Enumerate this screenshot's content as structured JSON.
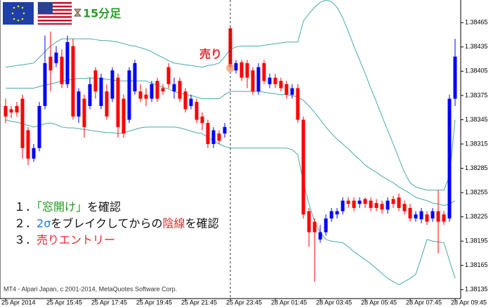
{
  "chart_data": {
    "type": "candlestick",
    "title": "15分足",
    "categories": [
      "25 Apr 2014",
      null,
      null,
      null,
      null,
      null,
      null,
      null,
      "25 Apr 15:45",
      null,
      null,
      null,
      null,
      null,
      null,
      null,
      "25 Apr 17:45",
      null,
      null,
      null,
      null,
      null,
      null,
      null,
      "25 Apr 19:45",
      null,
      null,
      null,
      null,
      null,
      null,
      null,
      "25 Apr 21:45",
      null,
      null,
      null,
      null,
      null,
      null,
      null,
      "25 Apr 23:45",
      null,
      null,
      null,
      null,
      null,
      null,
      null,
      "28 Apr 01:45",
      null,
      null,
      null,
      null,
      null,
      null,
      null,
      "28 Apr 03:45",
      null,
      null,
      null,
      null,
      null,
      null,
      null,
      "28 Apr 05:45",
      null,
      null,
      null,
      null,
      null,
      null,
      null,
      "28 Apr 07:45",
      null,
      null,
      null,
      null,
      null,
      null,
      null,
      "28 Apr 09:45"
    ],
    "open": [
      1.38362,
      1.38358,
      1.38362,
      1.38371,
      1.38332,
      1.38297,
      1.3831,
      1.38362,
      1.38423,
      1.38415,
      1.38423,
      1.38389,
      1.38436,
      1.38349,
      1.38371,
      1.38362,
      1.38406,
      1.38362,
      1.3838,
      1.38371,
      1.38397,
      1.38371,
      1.38345,
      1.3838,
      1.3838,
      1.38376,
      1.38371,
      1.38393,
      1.38384,
      1.3841,
      1.3838,
      1.38393,
      1.3838,
      1.38362,
      1.38367,
      1.38349,
      1.38341,
      1.38315,
      1.38328,
      1.38328,
      1.38458,
      1.38406,
      1.38416,
      1.38415,
      1.38406,
      1.3838,
      1.38415,
      1.38389,
      1.38397,
      1.38393,
      1.38389,
      1.38376,
      1.38384,
      1.38345,
      1.38232,
      1.38219,
      1.38197,
      1.38206,
      1.38223,
      1.38228,
      1.38232,
      1.38245,
      1.38245,
      1.38241,
      1.38247,
      1.38245,
      1.38242,
      1.38241,
      1.38234,
      1.38247,
      1.38249,
      1.38241,
      1.38236,
      1.38223,
      1.38222,
      1.38228,
      1.38223,
      1.38232,
      1.38228,
      1.38223,
      1.38371
    ],
    "high": [
      1.38371,
      1.38362,
      1.38367,
      1.38376,
      1.38336,
      1.38315,
      1.38367,
      1.38449,
      1.38454,
      1.38436,
      1.38432,
      1.38449,
      1.38445,
      1.38384,
      1.38376,
      1.38397,
      1.3841,
      1.38402,
      1.38389,
      1.3841,
      1.38402,
      1.38376,
      1.3841,
      1.38419,
      1.38389,
      1.38384,
      1.38393,
      1.38397,
      1.38389,
      1.38415,
      1.38397,
      1.38397,
      1.38384,
      1.38376,
      1.38371,
      1.38354,
      1.38345,
      1.38336,
      1.38332,
      1.38341,
      1.3846,
      1.38419,
      1.38419,
      1.38419,
      1.3841,
      1.38415,
      1.38419,
      1.38402,
      1.38402,
      1.38397,
      1.38393,
      1.38389,
      1.38389,
      1.38349,
      1.38236,
      1.38223,
      1.38215,
      1.38228,
      1.38236,
      1.38236,
      1.38249,
      1.38249,
      1.38249,
      1.38249,
      1.38249,
      1.38249,
      1.38247,
      1.38245,
      1.38249,
      1.38251,
      1.38254,
      1.38245,
      1.38241,
      1.38232,
      1.38236,
      1.38232,
      1.38236,
      1.38258,
      1.38232,
      1.38376,
      1.38445
    ],
    "low": [
      1.38341,
      1.38347,
      1.38349,
      1.38297,
      1.38289,
      1.38293,
      1.38306,
      1.38358,
      1.3838,
      1.3841,
      1.38384,
      1.38384,
      1.38345,
      1.38341,
      1.38323,
      1.38358,
      1.38371,
      1.38358,
      1.38345,
      1.38367,
      1.38323,
      1.38323,
      1.38341,
      1.38376,
      1.38367,
      1.38362,
      1.38367,
      1.38367,
      1.38376,
      1.38384,
      1.38371,
      1.38367,
      1.38354,
      1.38358,
      1.38341,
      1.38332,
      1.3831,
      1.3831,
      1.38315,
      1.38323,
      1.38406,
      1.38402,
      1.38393,
      1.38384,
      1.38376,
      1.38376,
      1.38389,
      1.38384,
      1.38384,
      1.3838,
      1.38371,
      1.38371,
      1.38341,
      1.38223,
      1.38188,
      1.38145,
      1.38193,
      1.38202,
      1.38219,
      1.38223,
      1.38228,
      1.38236,
      1.38232,
      1.38236,
      1.38236,
      1.38232,
      1.38232,
      1.38229,
      1.38229,
      1.38236,
      1.38232,
      1.38228,
      1.38219,
      1.38219,
      1.38217,
      1.38215,
      1.38219,
      1.3818,
      1.38215,
      1.38219,
      1.38362
    ],
    "close": [
      1.38349,
      1.38354,
      1.38354,
      1.3831,
      1.38297,
      1.3831,
      1.38362,
      1.38415,
      1.38406,
      1.38428,
      1.38389,
      1.38441,
      1.38349,
      1.3838,
      1.38336,
      1.38389,
      1.3838,
      1.38397,
      1.38349,
      1.38406,
      1.38336,
      1.38328,
      1.38406,
      1.38415,
      1.38371,
      1.38371,
      1.38389,
      1.38371,
      1.3838,
      1.38389,
      1.38389,
      1.38371,
      1.38358,
      1.38371,
      1.38345,
      1.38341,
      1.38315,
      1.38332,
      1.38319,
      1.38336,
      1.3841,
      1.38415,
      1.38397,
      1.38397,
      1.3838,
      1.3841,
      1.38393,
      1.38397,
      1.38389,
      1.38384,
      1.38376,
      1.38384,
      1.38345,
      1.38228,
      1.38206,
      1.38206,
      1.38206,
      1.38223,
      1.38232,
      1.38232,
      1.38245,
      1.38241,
      1.38236,
      1.38245,
      1.38241,
      1.38236,
      1.38236,
      1.38234,
      1.38245,
      1.38241,
      1.38236,
      1.38232,
      1.38223,
      1.38228,
      1.38232,
      1.38219,
      1.38232,
      1.38219,
      1.38219,
      1.38371,
      1.38423
    ],
    "up_color": "#0000ff",
    "down_color": "#ff0000",
    "overlays": [
      {
        "color": "#4aa8a8",
        "values": [
          1.3841,
          1.38411,
          1.38412,
          1.38413,
          1.38414,
          1.38415,
          1.38422,
          1.38429,
          1.38436,
          1.38441,
          1.38445,
          1.38445,
          1.38445,
          1.38445,
          1.38445,
          1.38445,
          1.38444,
          1.38443,
          1.38443,
          1.38442,
          1.38441,
          1.38439,
          1.38437,
          1.38436,
          1.38434,
          1.38432,
          1.38429,
          1.38425,
          1.38422,
          1.38418,
          1.38415,
          1.38414,
          1.38413,
          1.38412,
          1.38411,
          1.3841,
          1.38412,
          1.38413,
          1.38415,
          1.38423,
          1.38432,
          1.38435,
          1.38436,
          1.38436,
          1.38436,
          1.38436,
          1.38437,
          1.38438,
          1.38439,
          1.3844,
          1.38441,
          1.38441,
          1.38441,
          1.38467,
          1.38476,
          1.38484,
          1.3849,
          1.38493,
          1.38491,
          1.38484,
          1.38471,
          1.38454,
          1.38436,
          1.38419,
          1.38402,
          1.38384,
          1.38367,
          1.38349,
          1.38332,
          1.38315,
          1.38297,
          1.3828,
          1.38267,
          1.38262,
          1.3826,
          1.38258,
          1.38258,
          1.38258,
          1.38258,
          1.38275,
          1.38345
        ]
      },
      {
        "color": "#4aa8a8",
        "values": [
          1.38384,
          1.38384,
          1.38384,
          1.38384,
          1.38384,
          1.38384,
          1.38386,
          1.38388,
          1.38389,
          1.38391,
          1.38393,
          1.38394,
          1.38395,
          1.38396,
          1.38396,
          1.38397,
          1.38396,
          1.38396,
          1.38395,
          1.38394,
          1.38393,
          1.38393,
          1.38393,
          1.38393,
          1.38393,
          1.38393,
          1.3839,
          1.38388,
          1.38385,
          1.38383,
          1.3838,
          1.38378,
          1.38376,
          1.38375,
          1.38373,
          1.38371,
          1.38371,
          1.38371,
          1.38371,
          1.38376,
          1.3838,
          1.3838,
          1.3838,
          1.3838,
          1.3838,
          1.3838,
          1.38379,
          1.38378,
          1.38377,
          1.38376,
          1.38376,
          1.38375,
          1.38373,
          1.38369,
          1.38362,
          1.38354,
          1.38345,
          1.38336,
          1.38328,
          1.38321,
          1.38315,
          1.38309,
          1.38302,
          1.38296,
          1.38289,
          1.38284,
          1.3828,
          1.38275,
          1.38271,
          1.38267,
          1.38262,
          1.38258,
          1.38254,
          1.38249,
          1.38247,
          1.38245,
          1.38242,
          1.38241,
          1.38239,
          1.38241,
          1.38245
        ]
      },
      {
        "color": "#4aa8a8",
        "values": [
          1.38345,
          1.38343,
          1.38342,
          1.3834,
          1.38338,
          1.38336,
          1.38338,
          1.3834,
          1.38341,
          1.38339,
          1.38336,
          1.38335,
          1.38335,
          1.38334,
          1.38333,
          1.38332,
          1.38331,
          1.3833,
          1.38329,
          1.38329,
          1.38328,
          1.38329,
          1.38331,
          1.38333,
          1.38335,
          1.38336,
          1.38336,
          1.38336,
          1.38336,
          1.38336,
          1.38336,
          1.38335,
          1.38333,
          1.38331,
          1.38329,
          1.38328,
          1.38323,
          1.38319,
          1.38315,
          1.38312,
          1.3831,
          1.3831,
          1.3831,
          1.3831,
          1.3831,
          1.3831,
          1.3831,
          1.3831,
          1.3831,
          1.3831,
          1.3831,
          1.38308,
          1.38302,
          1.38267,
          1.38241,
          1.38219,
          1.38206,
          1.38197,
          1.38195,
          1.38194,
          1.38193,
          1.38188,
          1.38182,
          1.38177,
          1.38172,
          1.38167,
          1.38161,
          1.38155,
          1.38149,
          1.38145,
          1.38141,
          1.38145,
          1.38149,
          1.38154,
          1.38175,
          1.38197,
          1.38195,
          1.38194,
          1.38193,
          1.38171,
          1.38149
        ]
      }
    ],
    "ylim": [
      1.38124,
      1.38493
    ],
    "yticks": [
      1.38465,
      1.38435,
      1.38405,
      1.38375,
      1.38345,
      1.38315,
      1.38285,
      1.38255,
      1.38225,
      1.38195,
      1.38165,
      1.38135
    ],
    "grid": false,
    "annotation": {
      "text": "売り",
      "color": "#e8262c"
    },
    "notes": [
      [
        {
          "text": "１．"
        },
        {
          "text": "「窓開け」",
          "color": "#1a9a1a"
        },
        {
          "text": "を確認"
        }
      ],
      [
        {
          "text": "２．"
        },
        {
          "text": "2σ",
          "color": "#2277dd"
        },
        {
          "text": "をブレイクしてからの"
        },
        {
          "text": "陰線",
          "color": "#e8262c"
        },
        {
          "text": "を確認"
        }
      ],
      [
        {
          "text": "３．"
        },
        {
          "text": "売りエントリー",
          "color": "#e8262c"
        }
      ]
    ],
    "footer": "MT4 - Alpari Japan, c 2001-2014, MetaQuotes Software Corp."
  }
}
